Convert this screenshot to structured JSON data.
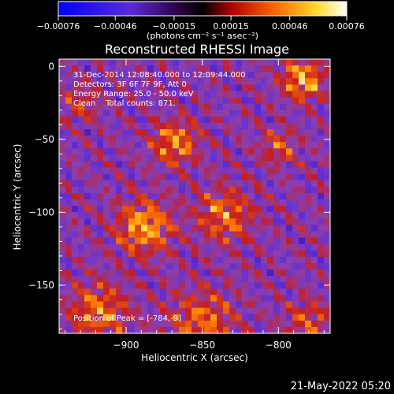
{
  "chart_data": {
    "type": "heatmap",
    "title": "Reconstructed RHESSI Image",
    "xlabel": "Heliocentric X (arcsec)",
    "ylabel": "Heliocentric Y (arcsec)",
    "xlim": [
      -944,
      -766
    ],
    "ylim": [
      -183,
      5
    ],
    "x_ticks": [
      -900,
      -850,
      -800
    ],
    "x_tick_labels": [
      "−900",
      "−850",
      "−800"
    ],
    "y_ticks": [
      0,
      -50,
      -100,
      -150
    ],
    "y_tick_labels": [
      "0",
      "−50",
      "−100",
      "−150"
    ],
    "colorbar": {
      "ticks": [
        -0.00076,
        -0.00046,
        -0.00015,
        0.00015,
        0.00046,
        0.00076
      ],
      "tick_labels": [
        "−0.00076",
        "−0.00046",
        "−0.00015",
        "0.00015",
        "0.00046",
        "0.00076"
      ],
      "units": "(photons cm⁻² s⁻¹ asec⁻²)",
      "range": [
        -0.00076,
        0.00076
      ]
    },
    "annotations": [
      "31-Dec-2014 12:08:40.000 to 12:09:44.000",
      "Detectors: 3F 6F 7F 9F, Att 0",
      "Energy Range: 25.0 - 50.0 keV",
      "Clean    Total counts: 871."
    ],
    "peak_label": "Position of Peak = [-784,-9]",
    "sources": [
      {
        "x": -784,
        "y": -9,
        "sigma": 9,
        "amp": 0.00076
      },
      {
        "x": -868,
        "y": -52,
        "sigma": 10,
        "amp": 0.00062
      },
      {
        "x": -888,
        "y": -110,
        "sigma": 12,
        "amp": 0.0007
      },
      {
        "x": -835,
        "y": -102,
        "sigma": 12,
        "amp": 0.00055
      },
      {
        "x": -800,
        "y": -55,
        "sigma": 8,
        "amp": 0.00042
      },
      {
        "x": -918,
        "y": -168,
        "sigma": 13,
        "amp": 0.00055
      },
      {
        "x": -850,
        "y": -175,
        "sigma": 14,
        "amp": 0.0005
      },
      {
        "x": -930,
        "y": -25,
        "sigma": 8,
        "amp": 0.00035
      },
      {
        "x": -780,
        "y": -175,
        "sigma": 10,
        "amp": 0.0004
      }
    ],
    "colormap": [
      "#000000",
      "#1c00a0",
      "#5a2bd8",
      "#8a3fb0",
      "#c81e1e",
      "#ff7a00",
      "#ffdc3c",
      "#ffffff"
    ]
  },
  "footer_date": "21-May-2022 05:20"
}
